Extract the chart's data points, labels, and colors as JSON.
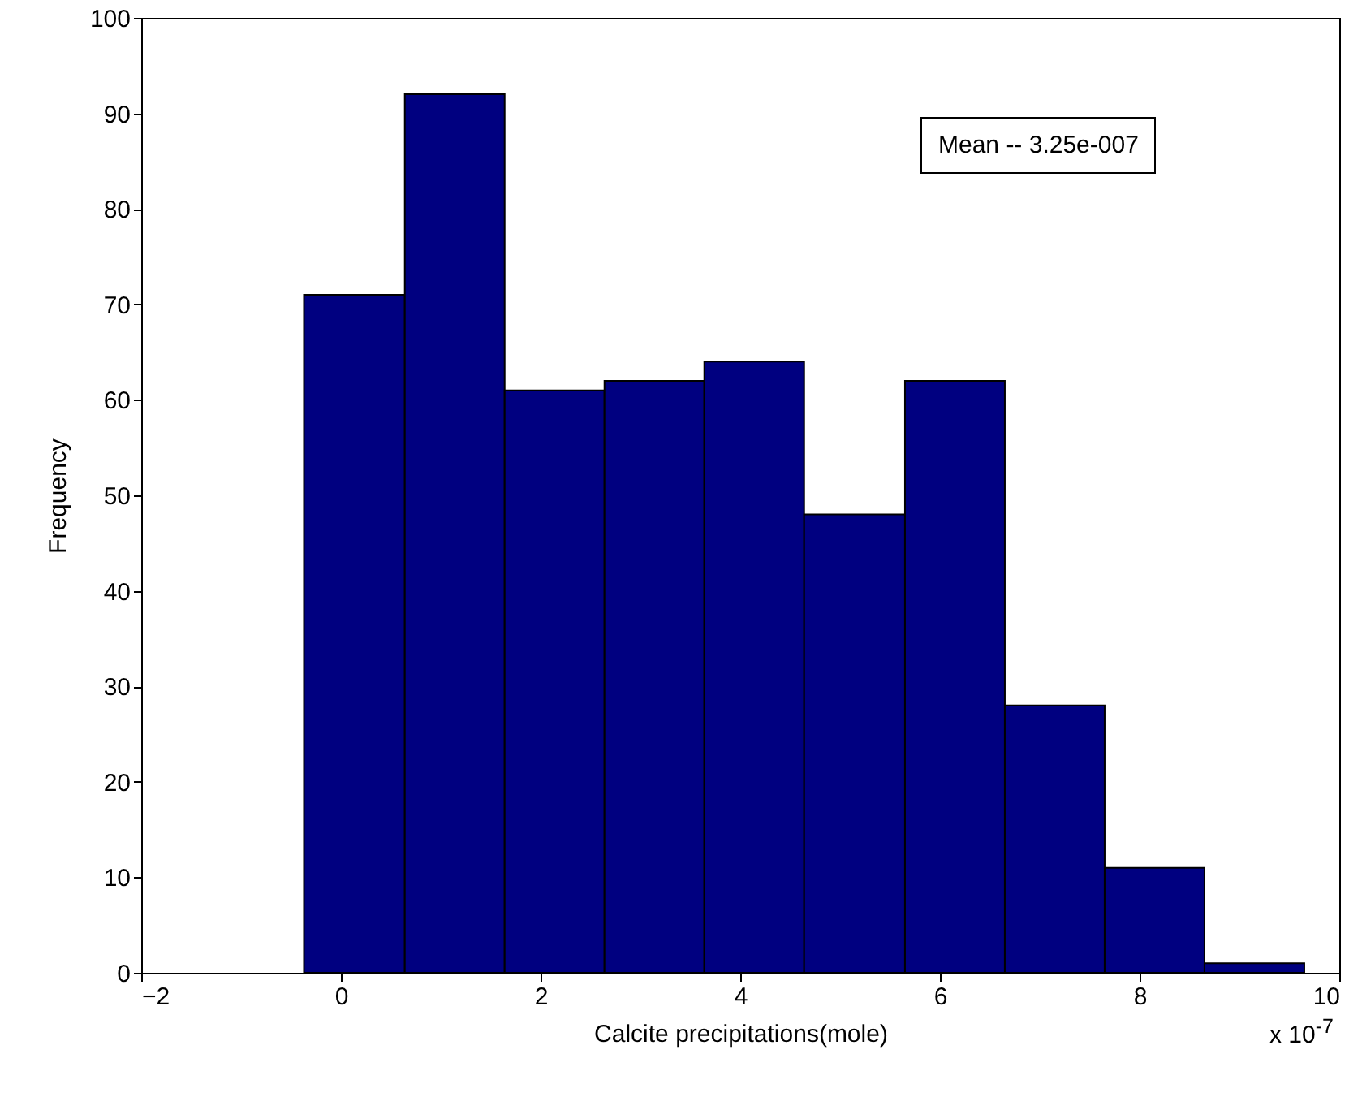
{
  "chart_data": {
    "type": "histogram",
    "xlabel": "Calcite precipitations(mole)",
    "ylabel": "Frequency",
    "bins": [
      -0.37,
      0.64,
      1.64,
      2.64,
      3.64,
      4.64,
      5.65,
      6.65,
      7.65,
      8.65,
      9.65
    ],
    "values": [
      71,
      92,
      61,
      62,
      64,
      48,
      62,
      28,
      11,
      1
    ],
    "color": "#000080",
    "xlim": [
      -2,
      10
    ],
    "xticks": [
      -2,
      0,
      2,
      4,
      6,
      8,
      10
    ],
    "ylim": [
      0,
      100
    ],
    "yticks": [
      0,
      10,
      20,
      30,
      40,
      50,
      60,
      70,
      80,
      90,
      100
    ],
    "grid": false,
    "annotations": [
      "Mean -- 3.25e-007",
      "x 10$^{-7}$"
    ]
  }
}
